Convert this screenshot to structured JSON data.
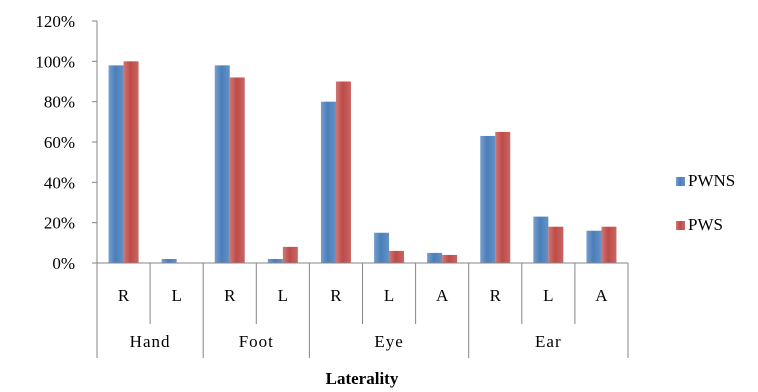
{
  "chart_data": {
    "type": "bar",
    "title": "",
    "xlabel": "Laterality",
    "ylabel": "",
    "ylim": [
      0,
      120
    ],
    "yticks": [
      "0%",
      "20%",
      "40%",
      "60%",
      "80%",
      "100%",
      "120%"
    ],
    "y_tick_values": [
      0,
      20,
      40,
      60,
      80,
      100,
      120
    ],
    "gridlines": false,
    "legend_position": "right",
    "groups": [
      {
        "label": "Hand",
        "categories": [
          "R",
          "L"
        ]
      },
      {
        "label": "Foot",
        "categories": [
          "R",
          "L"
        ]
      },
      {
        "label": "Eye",
        "categories": [
          "R",
          "L",
          "A"
        ]
      },
      {
        "label": "Ear",
        "categories": [
          "R",
          "L",
          "A"
        ]
      }
    ],
    "categories": [
      "R",
      "L",
      "R",
      "L",
      "R",
      "L",
      "A",
      "R",
      "L",
      "A"
    ],
    "series": [
      {
        "name": "PWNS",
        "color": "#4a7ebb",
        "values": [
          98,
          2,
          98,
          2,
          80,
          15,
          5,
          63,
          23,
          16
        ]
      },
      {
        "name": "PWS",
        "color": "#be4b48",
        "values": [
          100,
          0,
          92,
          8,
          90,
          6,
          4,
          65,
          18,
          18
        ]
      }
    ]
  }
}
